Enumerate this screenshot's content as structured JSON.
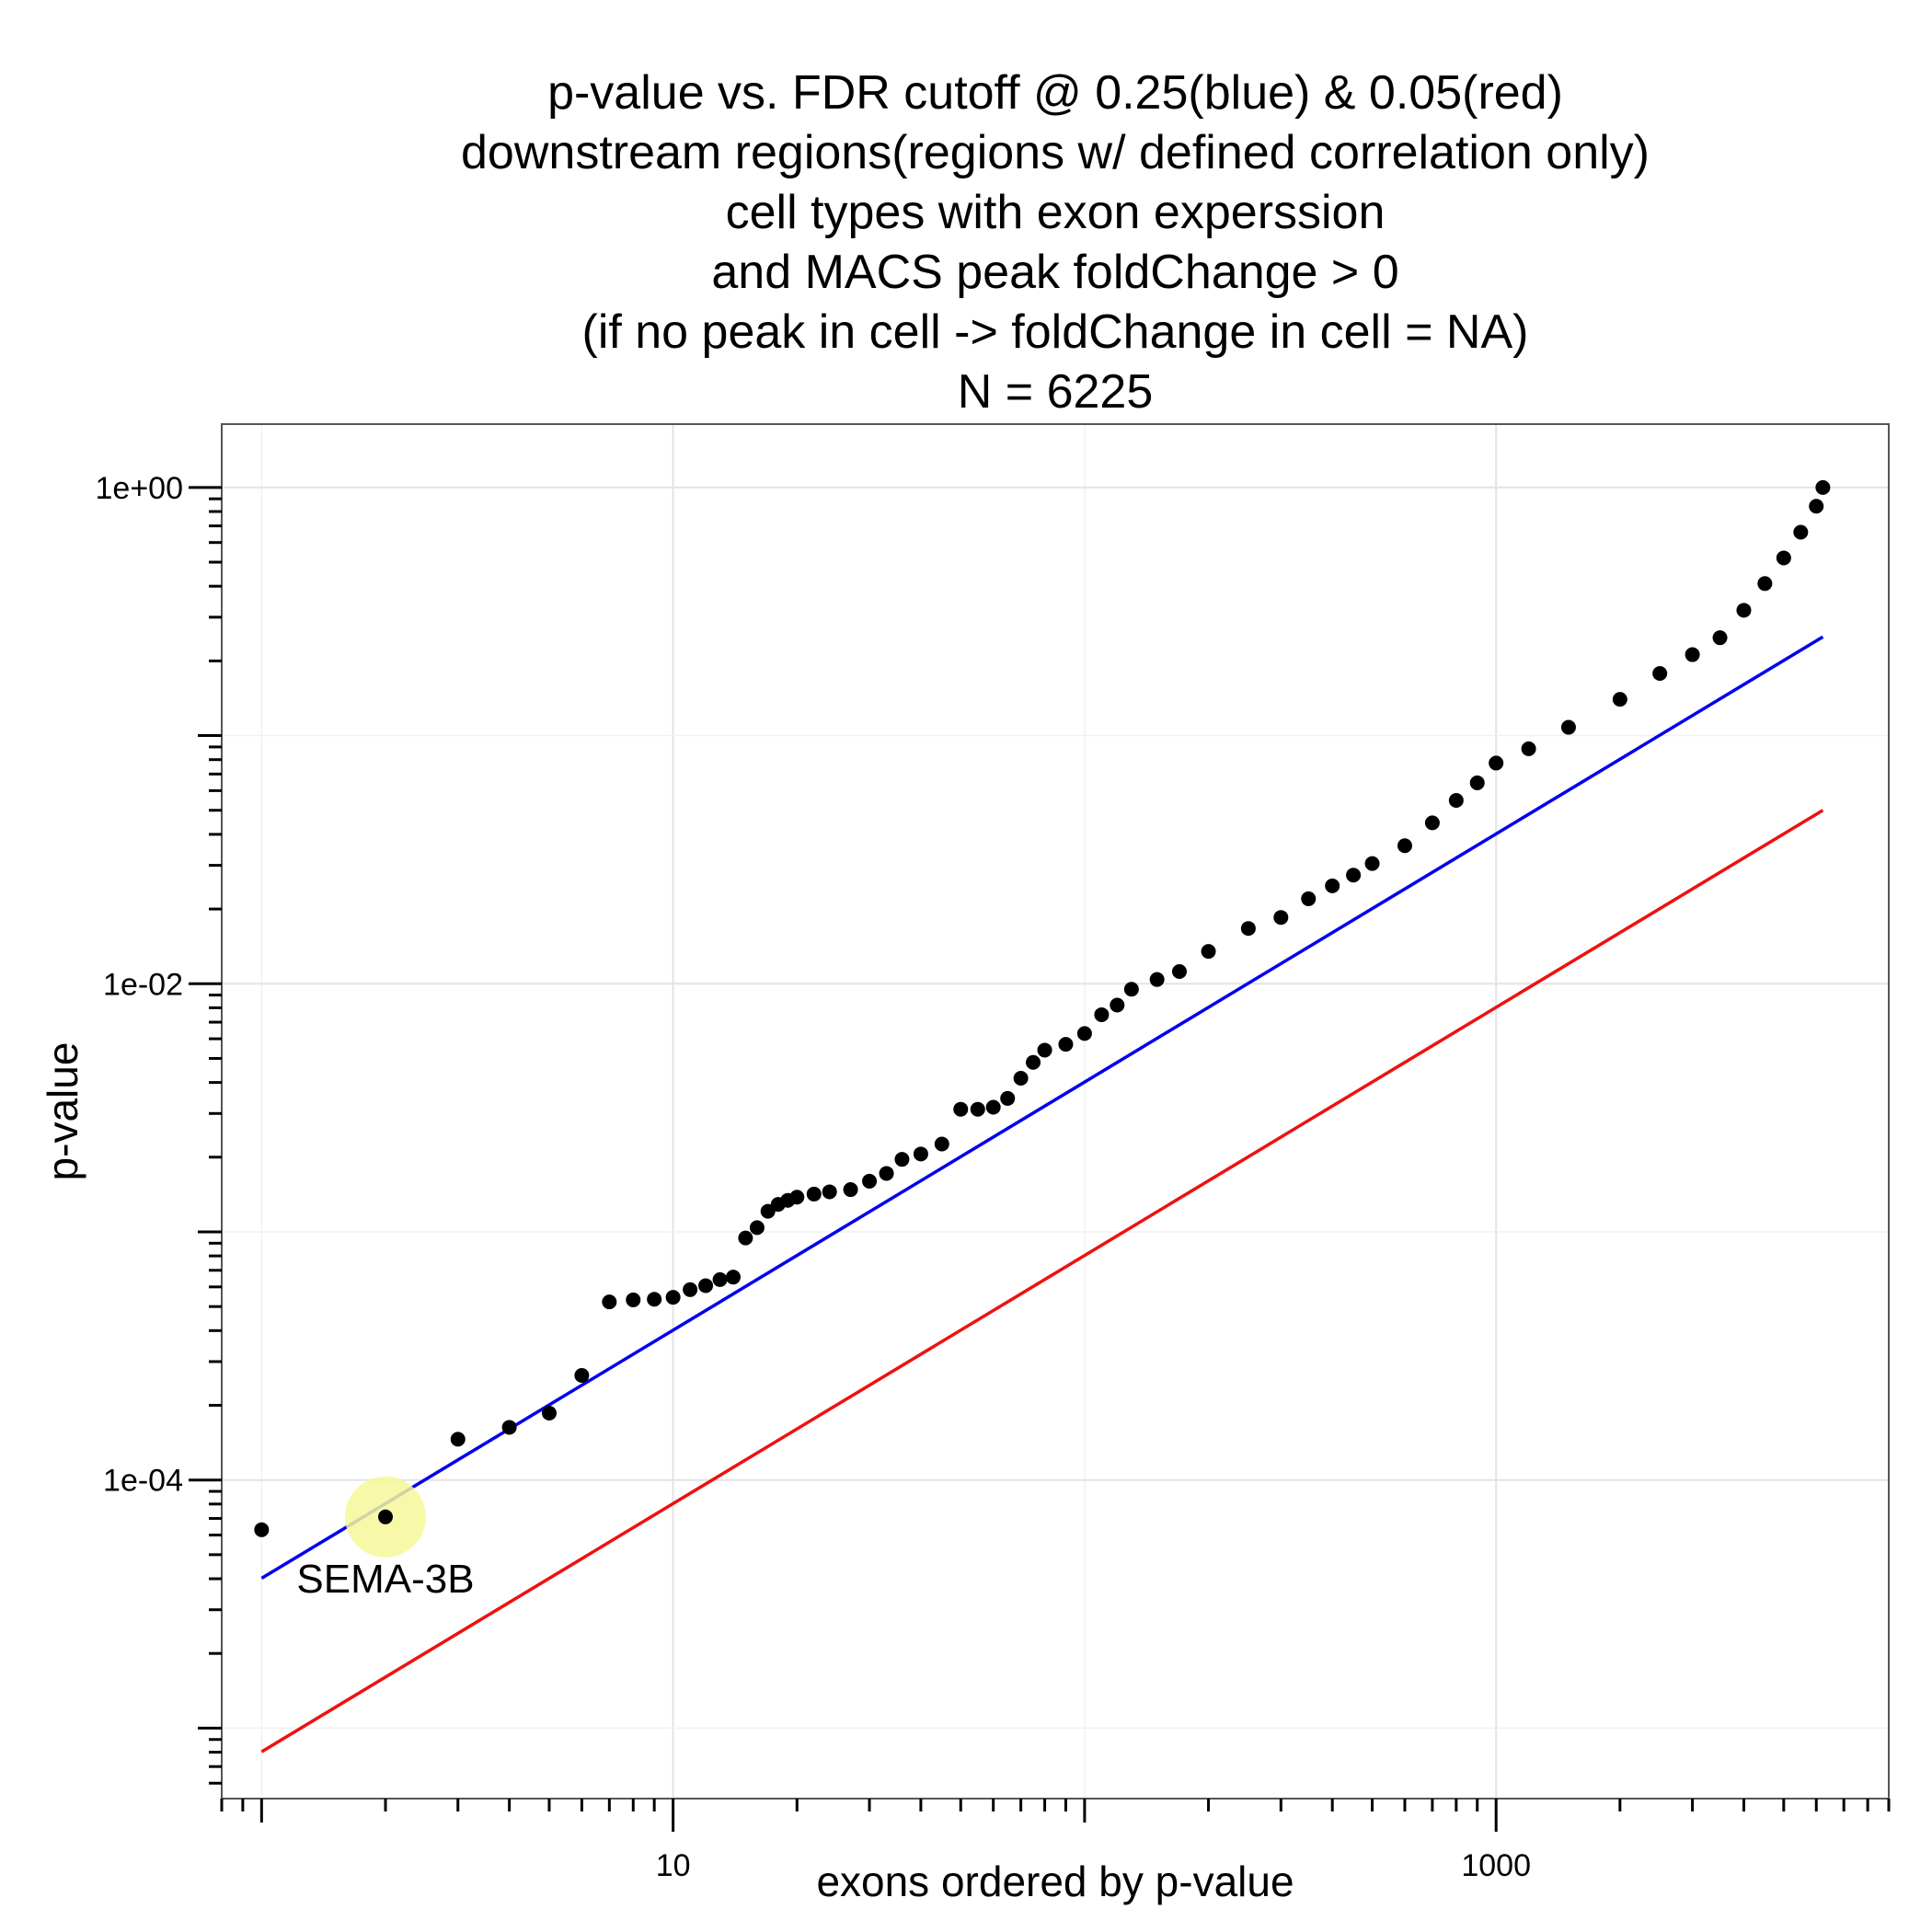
{
  "chart_data": {
    "type": "scatter",
    "title_lines": [
      "p-value vs. FDR cutoff @ 0.25(blue) & 0.05(red)",
      "downstream regions(regions w/ defined correlation only)",
      "cell types with exon experssion",
      "and MACS peak foldChange > 0",
      "(if no peak in cell  -> foldChange in cell = NA)",
      "N = 6225"
    ],
    "xlabel": "exons ordered by p-value",
    "ylabel": "p-value",
    "x_scale": "log10",
    "y_scale": "log10",
    "xlim": [
      0.8,
      9000
    ],
    "ylim": [
      5.2e-06,
      1.8
    ],
    "x_major_ticks": [
      10,
      1000
    ],
    "x_tick_labels": [
      "10",
      "1000"
    ],
    "y_major_ticks": [
      1,
      0.01,
      0.0001
    ],
    "y_tick_labels": [
      "1e+00",
      "1e-02",
      "1e-04"
    ],
    "grid": true,
    "N": 6225,
    "fdr_lines": [
      {
        "label": "0.25(blue)",
        "fdr": 0.25,
        "color": "#0000ee"
      },
      {
        "label": "0.05(red)",
        "fdr": 0.05,
        "color": "#ee1111"
      }
    ],
    "series": [
      {
        "color": "#000000",
        "points": [
          [
            1,
            6.3e-05
          ],
          [
            2,
            7.1e-05
          ],
          [
            3,
            0.000146
          ],
          [
            4,
            0.000163
          ],
          [
            5,
            0.000186
          ],
          [
            6,
            0.000264
          ],
          [
            7,
            0.000522
          ],
          [
            8,
            0.000532
          ],
          [
            9,
            0.000535
          ],
          [
            10,
            0.000545
          ],
          [
            11,
            0.000585
          ],
          [
            12,
            0.000607
          ],
          [
            13,
            0.000642
          ],
          [
            14,
            0.000657
          ],
          [
            15,
            0.000945
          ],
          [
            16,
            0.00104
          ],
          [
            17,
            0.00121
          ],
          [
            18,
            0.00129
          ],
          [
            19,
            0.00134
          ],
          [
            20,
            0.00138
          ],
          [
            22,
            0.00142
          ],
          [
            24,
            0.00145
          ],
          [
            27,
            0.00148
          ],
          [
            30,
            0.0016
          ],
          [
            33,
            0.00172
          ],
          [
            36,
            0.00196
          ],
          [
            40,
            0.00206
          ],
          [
            45,
            0.00226
          ],
          [
            50,
            0.00312
          ],
          [
            55,
            0.00312
          ],
          [
            60,
            0.00318
          ],
          [
            65,
            0.00345
          ],
          [
            70,
            0.00416
          ],
          [
            75,
            0.00482
          ],
          [
            80,
            0.0054
          ],
          [
            90,
            0.0057
          ],
          [
            100,
            0.0063
          ],
          [
            110,
            0.0075
          ],
          [
            120,
            0.0082
          ],
          [
            130,
            0.0095
          ],
          [
            150,
            0.0104
          ],
          [
            170,
            0.0112
          ],
          [
            200,
            0.0135
          ],
          [
            250,
            0.0167
          ],
          [
            300,
            0.0185
          ],
          [
            350,
            0.022
          ],
          [
            400,
            0.0248
          ],
          [
            450,
            0.0274
          ],
          [
            500,
            0.0305
          ],
          [
            600,
            0.036
          ],
          [
            700,
            0.0445
          ],
          [
            800,
            0.0548
          ],
          [
            900,
            0.0645
          ],
          [
            1000,
            0.0775
          ],
          [
            1200,
            0.0885
          ],
          [
            1500,
            0.108
          ],
          [
            2000,
            0.14
          ],
          [
            2500,
            0.178
          ],
          [
            3000,
            0.212
          ],
          [
            3500,
            0.248
          ],
          [
            4000,
            0.32
          ],
          [
            4500,
            0.41
          ],
          [
            5000,
            0.52
          ],
          [
            5500,
            0.66
          ],
          [
            6000,
            0.84
          ],
          [
            6225,
            1.0
          ]
        ]
      }
    ],
    "annotations": [
      {
        "text": "SEMA-3B",
        "x": 2,
        "y": 7.1e-05,
        "highlight_color": "#f7f79a"
      }
    ]
  }
}
